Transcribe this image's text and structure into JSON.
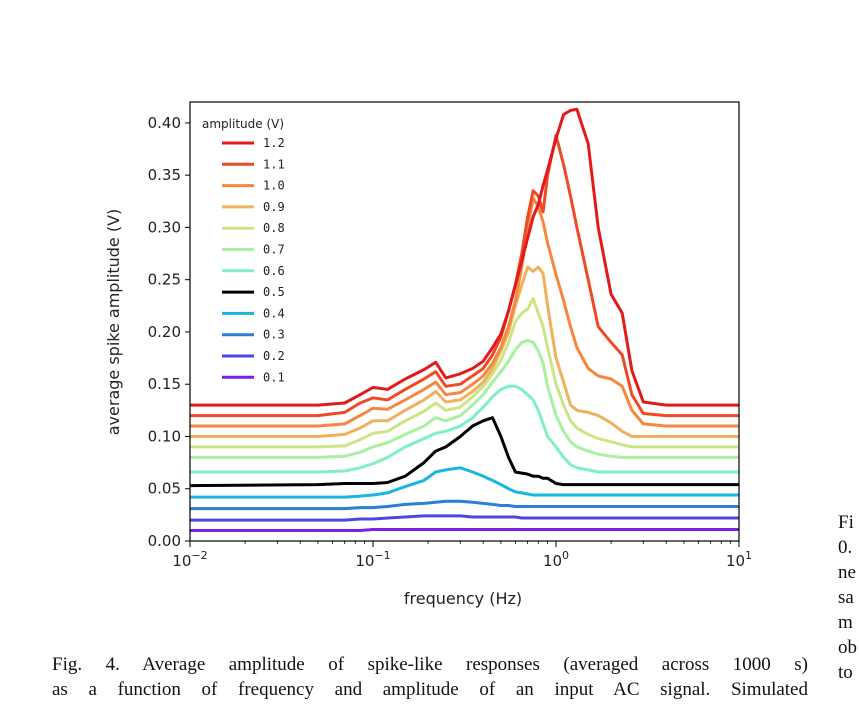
{
  "chart_data": {
    "type": "line",
    "xlabel": "frequency (Hz)",
    "ylabel": "average spike amplitude (V)",
    "xscale": "log",
    "xlim": [
      0.01,
      10
    ],
    "ylim": [
      0,
      0.42
    ],
    "yticks": [
      "0.00",
      "0.05",
      "0.10",
      "0.15",
      "0.20",
      "0.25",
      "0.30",
      "0.35",
      "0.40"
    ],
    "xticks": [
      {
        "base": "10",
        "exp": "−2"
      },
      {
        "base": "10",
        "exp": "−1"
      },
      {
        "base": "10",
        "exp": "0"
      },
      {
        "base": "10",
        "exp": "1"
      }
    ],
    "legend_title": "amplitude (V)",
    "legend_position": "upper-left",
    "x": [
      0.01,
      0.05,
      0.07,
      0.085,
      0.1,
      0.12,
      0.15,
      0.19,
      0.22,
      0.25,
      0.3,
      0.35,
      0.4,
      0.45,
      0.5,
      0.55,
      0.6,
      0.65,
      0.7,
      0.75,
      0.8,
      0.85,
      0.9,
      1.0,
      1.1,
      1.2,
      1.3,
      1.5,
      1.7,
      2.0,
      2.3,
      2.6,
      3.0,
      4.0,
      6.0,
      10.0
    ],
    "series": [
      {
        "name": "1.2",
        "color": "#e31a1c",
        "values": [
          0.13,
          0.13,
          0.132,
          0.14,
          0.147,
          0.145,
          0.155,
          0.164,
          0.171,
          0.156,
          0.16,
          0.165,
          0.172,
          0.185,
          0.198,
          0.22,
          0.245,
          0.268,
          0.29,
          0.31,
          0.322,
          0.34,
          0.355,
          0.385,
          0.408,
          0.412,
          0.413,
          0.38,
          0.3,
          0.236,
          0.218,
          0.163,
          0.133,
          0.13,
          0.13,
          0.13
        ]
      },
      {
        "name": "1.1",
        "color": "#ef4a26",
        "values": [
          0.12,
          0.12,
          0.123,
          0.132,
          0.137,
          0.135,
          0.145,
          0.155,
          0.162,
          0.148,
          0.15,
          0.158,
          0.165,
          0.178,
          0.195,
          0.22,
          0.245,
          0.275,
          0.31,
          0.335,
          0.33,
          0.315,
          0.35,
          0.388,
          0.36,
          0.33,
          0.3,
          0.25,
          0.205,
          0.19,
          0.178,
          0.14,
          0.122,
          0.12,
          0.12,
          0.12
        ]
      },
      {
        "name": "1.0",
        "color": "#f5873f",
        "values": [
          0.11,
          0.11,
          0.112,
          0.12,
          0.127,
          0.126,
          0.135,
          0.145,
          0.152,
          0.14,
          0.142,
          0.15,
          0.158,
          0.17,
          0.185,
          0.205,
          0.23,
          0.262,
          0.3,
          0.328,
          0.32,
          0.305,
          0.285,
          0.255,
          0.23,
          0.205,
          0.185,
          0.165,
          0.158,
          0.155,
          0.148,
          0.125,
          0.112,
          0.11,
          0.11,
          0.11
        ]
      },
      {
        "name": "0.9",
        "color": "#f0b05d",
        "values": [
          0.1,
          0.1,
          0.102,
          0.108,
          0.115,
          0.115,
          0.125,
          0.135,
          0.143,
          0.133,
          0.135,
          0.143,
          0.152,
          0.165,
          0.182,
          0.2,
          0.225,
          0.245,
          0.262,
          0.258,
          0.262,
          0.256,
          0.225,
          0.175,
          0.152,
          0.13,
          0.125,
          0.123,
          0.12,
          0.113,
          0.105,
          0.1,
          0.1,
          0.1,
          0.1,
          0.1
        ]
      },
      {
        "name": "0.8",
        "color": "#cde484",
        "values": [
          0.09,
          0.09,
          0.091,
          0.097,
          0.103,
          0.105,
          0.115,
          0.124,
          0.132,
          0.125,
          0.128,
          0.138,
          0.148,
          0.16,
          0.173,
          0.19,
          0.21,
          0.218,
          0.222,
          0.232,
          0.218,
          0.205,
          0.185,
          0.15,
          0.13,
          0.115,
          0.108,
          0.102,
          0.098,
          0.095,
          0.092,
          0.09,
          0.09,
          0.09,
          0.09,
          0.09
        ]
      },
      {
        "name": "0.7",
        "color": "#a9f0a0",
        "values": [
          0.08,
          0.08,
          0.081,
          0.085,
          0.09,
          0.094,
          0.102,
          0.11,
          0.118,
          0.115,
          0.12,
          0.13,
          0.14,
          0.152,
          0.162,
          0.172,
          0.183,
          0.19,
          0.192,
          0.19,
          0.182,
          0.17,
          0.148,
          0.12,
          0.105,
          0.095,
          0.09,
          0.086,
          0.083,
          0.081,
          0.08,
          0.08,
          0.08,
          0.08,
          0.08,
          0.08
        ]
      },
      {
        "name": "0.6",
        "color": "#7ff0c0",
        "values": [
          0.066,
          0.066,
          0.067,
          0.07,
          0.074,
          0.08,
          0.09,
          0.098,
          0.103,
          0.105,
          0.11,
          0.118,
          0.128,
          0.138,
          0.145,
          0.148,
          0.148,
          0.145,
          0.14,
          0.135,
          0.125,
          0.112,
          0.1,
          0.09,
          0.08,
          0.073,
          0.07,
          0.068,
          0.066,
          0.066,
          0.066,
          0.066,
          0.066,
          0.066,
          0.066,
          0.066
        ]
      },
      {
        "name": "0.5",
        "color": "#000000",
        "values": [
          0.053,
          0.054,
          0.055,
          0.055,
          0.055,
          0.056,
          0.062,
          0.075,
          0.086,
          0.09,
          0.1,
          0.11,
          0.115,
          0.118,
          0.1,
          0.08,
          0.066,
          0.065,
          0.064,
          0.062,
          0.062,
          0.06,
          0.06,
          0.055,
          0.054,
          0.054,
          0.054,
          0.054,
          0.054,
          0.054,
          0.054,
          0.054,
          0.054,
          0.054,
          0.054,
          0.054
        ]
      },
      {
        "name": "0.4",
        "color": "#1ab6e0",
        "values": [
          0.042,
          0.042,
          0.042,
          0.043,
          0.044,
          0.046,
          0.052,
          0.058,
          0.066,
          0.068,
          0.07,
          0.066,
          0.062,
          0.058,
          0.054,
          0.05,
          0.047,
          0.046,
          0.045,
          0.044,
          0.044,
          0.044,
          0.044,
          0.044,
          0.044,
          0.044,
          0.044,
          0.044,
          0.044,
          0.044,
          0.044,
          0.044,
          0.044,
          0.044,
          0.044,
          0.044
        ]
      },
      {
        "name": "0.3",
        "color": "#2c7fd8",
        "values": [
          0.031,
          0.031,
          0.031,
          0.032,
          0.032,
          0.033,
          0.035,
          0.036,
          0.037,
          0.038,
          0.038,
          0.037,
          0.036,
          0.035,
          0.034,
          0.034,
          0.033,
          0.033,
          0.033,
          0.033,
          0.033,
          0.033,
          0.033,
          0.033,
          0.033,
          0.033,
          0.033,
          0.033,
          0.033,
          0.033,
          0.033,
          0.033,
          0.033,
          0.033,
          0.033,
          0.033
        ]
      },
      {
        "name": "0.2",
        "color": "#4f46e0",
        "values": [
          0.02,
          0.02,
          0.02,
          0.021,
          0.021,
          0.022,
          0.023,
          0.024,
          0.024,
          0.024,
          0.024,
          0.023,
          0.023,
          0.023,
          0.023,
          0.023,
          0.023,
          0.022,
          0.022,
          0.022,
          0.022,
          0.022,
          0.022,
          0.022,
          0.022,
          0.022,
          0.022,
          0.022,
          0.022,
          0.022,
          0.022,
          0.022,
          0.022,
          0.022,
          0.022,
          0.022
        ]
      },
      {
        "name": "0.1",
        "color": "#7a1fe8",
        "values": [
          0.01,
          0.01,
          0.01,
          0.01,
          0.011,
          0.011,
          0.011,
          0.011,
          0.011,
          0.011,
          0.011,
          0.011,
          0.011,
          0.011,
          0.011,
          0.011,
          0.011,
          0.011,
          0.011,
          0.011,
          0.011,
          0.011,
          0.011,
          0.011,
          0.011,
          0.011,
          0.011,
          0.011,
          0.011,
          0.011,
          0.011,
          0.011,
          0.011,
          0.011,
          0.011,
          0.011
        ]
      }
    ]
  },
  "caption": {
    "line1": "Fig. 4.  Average amplitude of spike-like responses (averaged across 1000 s)",
    "line2": "as a function of frequency and amplitude of an input AC signal. Simulated"
  },
  "side_column": {
    "lines": [
      "Fi",
      "0.",
      "ne",
      "sa",
      "m",
      "ob",
      "to"
    ]
  }
}
